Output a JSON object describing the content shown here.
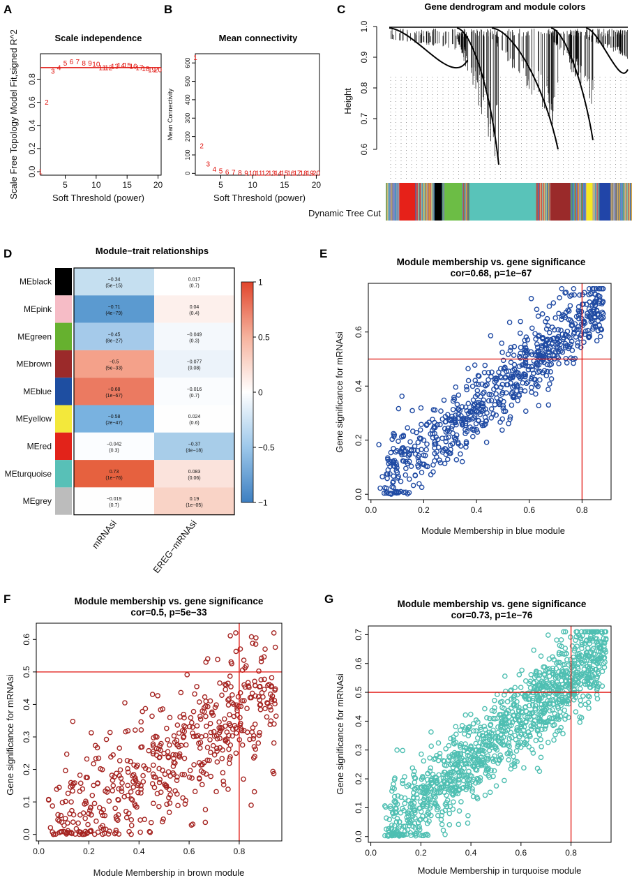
{
  "figure_labels": {
    "A": "A",
    "B": "B",
    "C": "C",
    "D": "D",
    "E": "E",
    "F": "F",
    "G": "G"
  },
  "colors": {
    "red": "#e0110b",
    "blue": "#1f4aa3",
    "brown": "#a52421",
    "turquoise": "#4fbfb2",
    "black": "#000000"
  },
  "chart_data": [
    {
      "id": "A",
      "type": "scatter",
      "marker": "text-labels",
      "title": "Scale independence",
      "xlabel": "Soft Threshold (power)",
      "ylabel": "Scale Free Topology Model Fit,signed R^2",
      "xlim": [
        1,
        20.5
      ],
      "ylim": [
        -0.03,
        1.02
      ],
      "xticks": [
        5,
        10,
        15,
        20
      ],
      "yticks": [
        0.0,
        0.2,
        0.4,
        0.6,
        0.8
      ],
      "hline": 0.9,
      "points": [
        {
          "x": 1,
          "y": 0.0,
          "label": "1"
        },
        {
          "x": 2,
          "y": 0.6,
          "label": "2"
        },
        {
          "x": 3,
          "y": 0.87,
          "label": "3"
        },
        {
          "x": 4,
          "y": 0.9,
          "label": "4"
        },
        {
          "x": 5,
          "y": 0.94,
          "label": "5"
        },
        {
          "x": 6,
          "y": 0.95,
          "label": "6"
        },
        {
          "x": 7,
          "y": 0.95,
          "label": "7"
        },
        {
          "x": 8,
          "y": 0.94,
          "label": "8"
        },
        {
          "x": 9,
          "y": 0.94,
          "label": "9"
        },
        {
          "x": 10,
          "y": 0.93,
          "label": "10"
        },
        {
          "x": 11,
          "y": 0.9,
          "label": "11"
        },
        {
          "x": 12,
          "y": 0.9,
          "label": "12"
        },
        {
          "x": 13,
          "y": 0.91,
          "label": "13"
        },
        {
          "x": 14,
          "y": 0.92,
          "label": "14"
        },
        {
          "x": 15,
          "y": 0.92,
          "label": "15"
        },
        {
          "x": 16,
          "y": 0.91,
          "label": "16"
        },
        {
          "x": 17,
          "y": 0.9,
          "label": "17"
        },
        {
          "x": 18,
          "y": 0.89,
          "label": "18"
        },
        {
          "x": 19,
          "y": 0.88,
          "label": "19"
        },
        {
          "x": 20,
          "y": 0.88,
          "label": "20"
        }
      ]
    },
    {
      "id": "B",
      "type": "scatter",
      "marker": "text-labels",
      "title": "Mean connectivity",
      "xlabel": "Soft Threshold (power)",
      "ylabel": "Mean Connectivity",
      "xlim": [
        1,
        20.5
      ],
      "ylim": [
        -10,
        650
      ],
      "xticks": [
        5,
        10,
        15,
        20
      ],
      "yticks": [
        0,
        100,
        200,
        300,
        400,
        500,
        600
      ],
      "points": [
        {
          "x": 1,
          "y": 630,
          "label": "1"
        },
        {
          "x": 2,
          "y": 150,
          "label": "2"
        },
        {
          "x": 3,
          "y": 50,
          "label": "3"
        },
        {
          "x": 4,
          "y": 22,
          "label": "4"
        },
        {
          "x": 5,
          "y": 12,
          "label": "5"
        },
        {
          "x": 6,
          "y": 7,
          "label": "6"
        },
        {
          "x": 7,
          "y": 5,
          "label": "7"
        },
        {
          "x": 8,
          "y": 3,
          "label": "8"
        },
        {
          "x": 9,
          "y": 2,
          "label": "9"
        },
        {
          "x": 10,
          "y": 1,
          "label": "10"
        },
        {
          "x": 11,
          "y": 1,
          "label": "11"
        },
        {
          "x": 12,
          "y": 1,
          "label": "12"
        },
        {
          "x": 13,
          "y": 1,
          "label": "13"
        },
        {
          "x": 14,
          "y": 1,
          "label": "14"
        },
        {
          "x": 15,
          "y": 1,
          "label": "15"
        },
        {
          "x": 16,
          "y": 1,
          "label": "16"
        },
        {
          "x": 17,
          "y": 1,
          "label": "17"
        },
        {
          "x": 18,
          "y": 1,
          "label": "18"
        },
        {
          "x": 19,
          "y": 1,
          "label": "19"
        },
        {
          "x": 20,
          "y": 1,
          "label": "20"
        }
      ]
    },
    {
      "id": "C",
      "type": "dendrogram",
      "title": "Gene dendrogram and module colors",
      "ylabel": "Height",
      "ylim": [
        0.5,
        1.0
      ],
      "yticks": [
        0.6,
        0.7,
        0.8,
        0.9,
        1.0
      ],
      "color_bar_label": "Dynamic Tree Cut",
      "module_segments": [
        {
          "color": "#e62119",
          "start": 0.055,
          "end": 0.12
        },
        {
          "color": "#000000",
          "start": 0.198,
          "end": 0.228
        },
        {
          "color": "#6cbd45",
          "start": 0.238,
          "end": 0.31
        },
        {
          "color": "#59c3b9",
          "start": 0.34,
          "end": 0.61
        },
        {
          "color": "#9a2a2a",
          "start": 0.67,
          "end": 0.75
        },
        {
          "color": "#f6e823",
          "start": 0.815,
          "end": 0.84
        },
        {
          "color": "#2145a8",
          "start": 0.868,
          "end": 0.912
        }
      ]
    },
    {
      "id": "D",
      "type": "heatmap",
      "title": "Module−trait relationships",
      "columns": [
        "mRNAsi",
        "EREG−mRNAsi"
      ],
      "rows": [
        "MEblack",
        "MEpink",
        "MEgreen",
        "MEbrown",
        "MEblue",
        "MEyellow",
        "MEred",
        "MEturquoise",
        "MEgrey"
      ],
      "row_colors": [
        "#000000",
        "#f6bcc6",
        "#66b12f",
        "#9b2a2a",
        "#1e4ea1",
        "#f3e83b",
        "#e2231a",
        "#58c0b7",
        "#bcbcbc"
      ],
      "values": [
        [
          -0.34,
          0.017
        ],
        [
          -0.71,
          0.04
        ],
        [
          -0.45,
          -0.049
        ],
        [
          -0.5,
          -0.077
        ],
        [
          -0.68,
          -0.016
        ],
        [
          -0.58,
          0.024
        ],
        [
          -0.042,
          -0.37
        ],
        [
          0.73,
          0.083
        ],
        [
          -0.019,
          0.19
        ]
      ],
      "value_labels": [
        [
          "−0.34",
          "0.017"
        ],
        [
          "−0.71",
          "0.04"
        ],
        [
          "−0.45",
          "−0.049"
        ],
        [
          "−0.5",
          "−0.077"
        ],
        [
          "−0.68",
          "−0.016"
        ],
        [
          "−0.58",
          "0.024"
        ],
        [
          "−0.042",
          "−0.37"
        ],
        [
          "0.73",
          "0.083"
        ],
        [
          "−0.019",
          "0.19"
        ]
      ],
      "pvalues": [
        [
          "(5e−15)",
          "(0.7)"
        ],
        [
          "(4e−79)",
          "(0.4)"
        ],
        [
          "(8e−27)",
          "(0.3)"
        ],
        [
          "(5e−33)",
          "(0.08)"
        ],
        [
          "(1e−67)",
          "(0.7)"
        ],
        [
          "(2e−47)",
          "(0.6)"
        ],
        [
          "(0.3)",
          "(4e−18)"
        ],
        [
          "(1e−76)",
          "(0.06)"
        ],
        [
          "(0.7)",
          "(1e−05)"
        ]
      ],
      "cell_colors": [
        [
          "#c5dff0",
          "#ffffff"
        ],
        [
          "#5b9ad0",
          "#fdf0ec"
        ],
        [
          "#a5caea",
          "#f4f8fc"
        ],
        [
          "#f4a18a",
          "#ecf3fa"
        ],
        [
          "#eb7a61",
          "#fafcfe"
        ],
        [
          "#79b2e0",
          "#fefefe"
        ],
        [
          "#fbfdff",
          "#a8cde9"
        ],
        [
          "#e6613f",
          "#fbe3dc"
        ],
        [
          "#fefefe",
          "#f9d3c6"
        ]
      ],
      "colorbar_ticks": [
        "1",
        "0.5",
        "0",
        "−0.5",
        "−1"
      ],
      "colorbar_range": [
        -1,
        1
      ]
    },
    {
      "id": "E",
      "type": "scatter",
      "seed": 11,
      "n_points": 760,
      "title": "Module membership vs. gene significance",
      "subtitle": "cor=0.68, p=1e−67",
      "xlabel": "Module Membership in blue module",
      "ylabel": "Gene significance for  mRNAsi",
      "xlim": [
        -0.01,
        0.91
      ],
      "ylim": [
        -0.02,
        0.78
      ],
      "xticks": [
        "0.0",
        "0.2",
        "0.4",
        "0.6",
        "0.8"
      ],
      "yticks": [
        "0.0",
        "0.2",
        "0.4",
        "0.6"
      ],
      "vline": 0.8,
      "hline": 0.5,
      "point_color": "#1f4aa3",
      "x_range": [
        0.03,
        0.88
      ],
      "trend": {
        "slope": 0.78,
        "intercept": 0.015,
        "noise": 0.072
      },
      "y_clip": [
        0.0,
        0.76
      ]
    },
    {
      "id": "F",
      "type": "scatter",
      "seed": 23,
      "n_points": 540,
      "title": "Module membership vs. gene significance",
      "subtitle": "cor=0.5, p=5e−33",
      "xlabel": "Module Membership in brown module",
      "ylabel": "Gene significance for  mRNAsi",
      "xlim": [
        -0.01,
        0.97
      ],
      "ylim": [
        -0.02,
        0.65
      ],
      "xticks": [
        "0.0",
        "0.2",
        "0.4",
        "0.6",
        "0.8"
      ],
      "yticks": [
        "0.0",
        "0.1",
        "0.2",
        "0.3",
        "0.4",
        "0.5",
        "0.6"
      ],
      "vline": 0.8,
      "hline": 0.5,
      "point_color": "#a52421",
      "x_range": [
        0.03,
        0.95
      ],
      "trend": {
        "slope": 0.46,
        "intercept": 0.0,
        "noise": 0.1
      },
      "y_clip": [
        0.0,
        0.62
      ]
    },
    {
      "id": "G",
      "type": "scatter",
      "seed": 37,
      "n_points": 1250,
      "title": "Module membership vs. gene significance",
      "subtitle": "cor=0.73, p=1e−76",
      "xlabel": "Module Membership in turquoise module",
      "ylabel": "Gene significance for  mRNAsi",
      "xlim": [
        -0.01,
        0.96
      ],
      "ylim": [
        -0.02,
        0.73
      ],
      "xticks": [
        "0.0",
        "0.2",
        "0.4",
        "0.6",
        "0.8"
      ],
      "yticks": [
        "0.0",
        "0.1",
        "0.2",
        "0.3",
        "0.4",
        "0.5",
        "0.6",
        "0.7"
      ],
      "vline": 0.8,
      "hline": 0.5,
      "point_color": "#4fbfb2",
      "x_range": [
        0.05,
        0.94
      ],
      "trend": {
        "slope": 0.72,
        "intercept": -0.02,
        "noise": 0.075
      },
      "y_clip": [
        0.0,
        0.71
      ]
    }
  ]
}
